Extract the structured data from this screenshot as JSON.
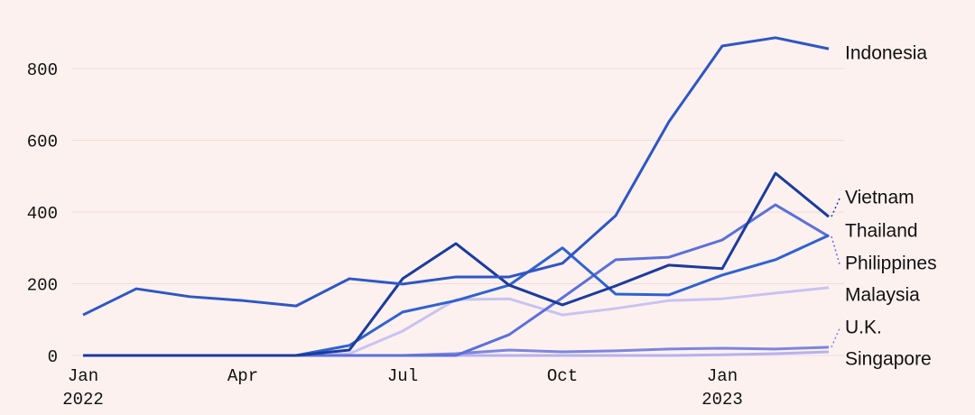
{
  "chart_data": {
    "type": "line",
    "categories": [
      "Jan 2022",
      null,
      null,
      "Apr",
      null,
      null,
      "Jul",
      null,
      null,
      "Oct",
      null,
      null,
      "Jan 2023",
      null,
      null
    ],
    "series": [
      {
        "name": "Indonesia",
        "color": "#2e56c6",
        "values": [
          113,
          186,
          164,
          153,
          138,
          214,
          199,
          219,
          219,
          257,
          390,
          652,
          863,
          886,
          855
        ]
      },
      {
        "name": "Vietnam",
        "color": "#1b3b9e",
        "values": [
          0,
          0,
          0,
          0,
          0,
          15,
          214,
          312,
          196,
          141,
          194,
          252,
          242,
          508,
          387
        ]
      },
      {
        "name": "Thailand",
        "color": "#2f62d2",
        "values": [
          0,
          0,
          0,
          0,
          0,
          28,
          121,
          153,
          196,
          300,
          171,
          169,
          224,
          267,
          335
        ]
      },
      {
        "name": "Philippines",
        "color": "#5b70da",
        "values": [
          0,
          0,
          0,
          0,
          0,
          0,
          0,
          0,
          58,
          161,
          267,
          274,
          322,
          420,
          332
        ]
      },
      {
        "name": "Malaysia",
        "color": "#c9c3f1",
        "values": [
          0,
          0,
          0,
          0,
          0,
          5,
          68,
          156,
          158,
          113,
          131,
          153,
          158,
          174,
          189
        ]
      },
      {
        "name": "U.K.",
        "color": "#7d85e1",
        "values": [
          0,
          0,
          0,
          0,
          0,
          0,
          0,
          5,
          15,
          10,
          13,
          18,
          20,
          18,
          23
        ]
      },
      {
        "name": "Singapore",
        "color": "#b6b2ee",
        "values": [
          0,
          0,
          0,
          0,
          0,
          0,
          0,
          0,
          0,
          0,
          0,
          0,
          2,
          5,
          10
        ]
      }
    ],
    "ylim": [
      0,
      900
    ],
    "yticks": [
      0,
      200,
      400,
      600,
      800
    ],
    "grid": true
  }
}
